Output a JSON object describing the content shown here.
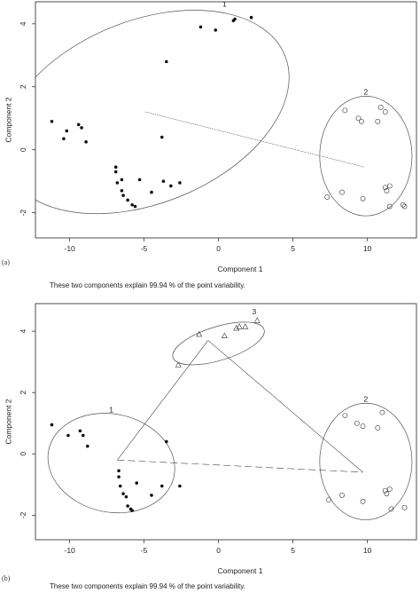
{
  "chart_data": [
    {
      "type": "scatter",
      "panel_label": "(a)",
      "xlabel": "Component 1",
      "ylabel": "Component 2",
      "caption": "These two components explain 99.94 % of the point variability.",
      "xlim": [
        -12.3,
        13.3
      ],
      "ylim": [
        -2.8,
        4.7
      ],
      "x_ticks": [
        -10,
        -5,
        0,
        5,
        10
      ],
      "y_ticks": [
        -2,
        0,
        2,
        4
      ],
      "grid": false,
      "clusters": [
        {
          "label": "1",
          "marker": "dot",
          "center": [
            -4.9,
            1.2
          ],
          "points": [
            [
              -11.2,
              0.9
            ],
            [
              -10.4,
              0.35
            ],
            [
              -10.2,
              0.6
            ],
            [
              -9.4,
              0.8
            ],
            [
              -9.2,
              0.7
            ],
            [
              -8.9,
              0.25
            ],
            [
              -6.9,
              -0.55
            ],
            [
              -6.9,
              -0.7
            ],
            [
              -6.8,
              -1.05
            ],
            [
              -6.5,
              -0.95
            ],
            [
              -6.5,
              -1.3
            ],
            [
              -6.4,
              -1.45
            ],
            [
              -6.1,
              -1.6
            ],
            [
              -5.8,
              -1.75
            ],
            [
              -5.6,
              -1.8
            ],
            [
              -5.3,
              -0.95
            ],
            [
              -4.5,
              -1.35
            ],
            [
              -3.7,
              -1.0
            ],
            [
              -3.8,
              0.4
            ],
            [
              -3.5,
              2.8
            ],
            [
              -3.2,
              -1.15
            ],
            [
              -2.6,
              -1.05
            ],
            [
              -1.2,
              3.9
            ],
            [
              -0.2,
              3.8
            ],
            [
              1.0,
              4.1
            ],
            [
              1.1,
              4.15
            ],
            [
              2.2,
              4.2
            ]
          ]
        },
        {
          "label": "2",
          "marker": "circle",
          "center": [
            9.8,
            -0.55
          ],
          "points": [
            [
              7.3,
              -1.5
            ],
            [
              8.3,
              -1.35
            ],
            [
              8.5,
              1.25
            ],
            [
              9.4,
              1.0
            ],
            [
              9.6,
              0.9
            ],
            [
              9.7,
              -1.55
            ],
            [
              10.7,
              0.9
            ],
            [
              10.9,
              1.35
            ],
            [
              11.2,
              1.2
            ],
            [
              11.2,
              -1.2
            ],
            [
              11.3,
              -1.3
            ],
            [
              11.5,
              -1.15
            ],
            [
              11.5,
              -1.8
            ],
            [
              12.4,
              -1.75
            ],
            [
              12.5,
              -1.8
            ]
          ]
        }
      ],
      "ellipses": [
        {
          "cluster": "1",
          "cx": -4.9,
          "cy": 1.2,
          "rx": 10.1,
          "ry": 2.9,
          "angle_deg": 22
        },
        {
          "cluster": "2",
          "cx": 9.9,
          "cy": -0.2,
          "rx": 3.1,
          "ry": 1.9,
          "angle_deg": 0
        }
      ],
      "links": [
        {
          "from": [
            -4.9,
            1.2
          ],
          "to": [
            9.8,
            -0.55
          ],
          "style": "dotted"
        }
      ]
    },
    {
      "type": "scatter",
      "panel_label": "(b)",
      "xlabel": "Component 1",
      "ylabel": "Component 2",
      "caption": "These two components explain 99.94 % of the point variability.",
      "xlim": [
        -12.3,
        13.3
      ],
      "ylim": [
        -2.8,
        4.9
      ],
      "x_ticks": [
        -10,
        -5,
        0,
        5,
        10
      ],
      "y_ticks": [
        -2,
        0,
        2,
        4
      ],
      "grid": false,
      "clusters": [
        {
          "label": "1",
          "marker": "dot",
          "center": [
            -6.8,
            -0.2
          ],
          "points": [
            [
              -11.2,
              0.95
            ],
            [
              -10.1,
              0.6
            ],
            [
              -9.3,
              0.75
            ],
            [
              -9.1,
              0.6
            ],
            [
              -8.8,
              0.25
            ],
            [
              -6.7,
              -0.55
            ],
            [
              -6.7,
              -0.75
            ],
            [
              -6.6,
              -1.05
            ],
            [
              -6.4,
              -1.3
            ],
            [
              -6.2,
              -1.4
            ],
            [
              -6.1,
              -1.7
            ],
            [
              -5.9,
              -1.8
            ],
            [
              -5.8,
              -1.85
            ],
            [
              -5.5,
              -0.95
            ],
            [
              -4.5,
              -1.35
            ],
            [
              -3.8,
              -1.05
            ],
            [
              -3.5,
              0.4
            ],
            [
              -2.6,
              -1.05
            ]
          ]
        },
        {
          "label": "2",
          "marker": "circle",
          "center": [
            9.7,
            -0.6
          ],
          "points": [
            [
              7.4,
              -1.5
            ],
            [
              8.3,
              -1.35
            ],
            [
              8.5,
              1.25
            ],
            [
              9.3,
              1.0
            ],
            [
              9.7,
              0.9
            ],
            [
              9.7,
              -1.55
            ],
            [
              10.7,
              0.85
            ],
            [
              11.0,
              1.35
            ],
            [
              11.2,
              -1.2
            ],
            [
              11.3,
              -1.3
            ],
            [
              11.5,
              -1.15
            ],
            [
              11.6,
              -1.8
            ],
            [
              12.5,
              -1.75
            ]
          ]
        },
        {
          "label": "3",
          "marker": "triangle",
          "center": [
            -0.7,
            3.7
          ],
          "points": [
            [
              -2.7,
              2.9
            ],
            [
              -1.3,
              3.9
            ],
            [
              0.4,
              3.85
            ],
            [
              1.2,
              4.1
            ],
            [
              1.4,
              4.15
            ],
            [
              1.8,
              4.15
            ],
            [
              2.6,
              4.35
            ]
          ]
        }
      ],
      "ellipses": [
        {
          "cluster": "1",
          "cx": -7.2,
          "cy": -0.3,
          "rx": 4.3,
          "ry": 1.6,
          "angle_deg": -12
        },
        {
          "cluster": "2",
          "cx": 9.9,
          "cy": -0.25,
          "rx": 3.1,
          "ry": 1.9,
          "angle_deg": 0
        },
        {
          "cluster": "3",
          "cx": 0.0,
          "cy": 3.6,
          "rx": 3.2,
          "ry": 0.55,
          "angle_deg": 17
        }
      ],
      "links": [
        {
          "from": [
            -6.8,
            -0.2
          ],
          "to": [
            -0.7,
            3.7
          ],
          "style": "solid"
        },
        {
          "from": [
            -0.7,
            3.7
          ],
          "to": [
            9.7,
            -0.6
          ],
          "style": "solid"
        },
        {
          "from": [
            -6.8,
            -0.2
          ],
          "to": [
            9.7,
            -0.6
          ],
          "style": "dashed"
        }
      ]
    }
  ]
}
